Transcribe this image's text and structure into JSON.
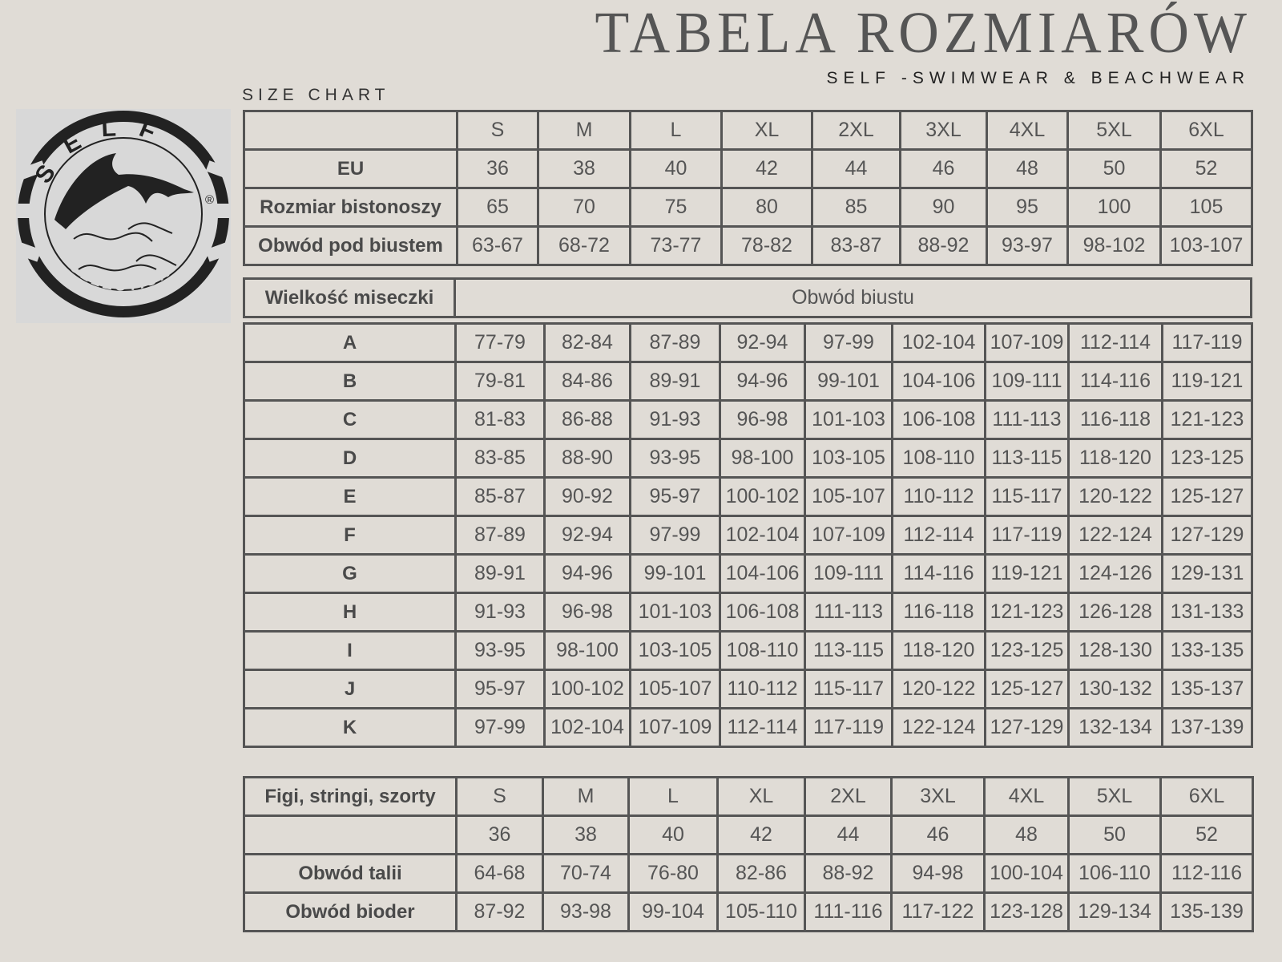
{
  "header": {
    "title": "TABELA ROZMIARÓW",
    "subtitle": "SELF -SWIMWEAR & BEACHWEAR",
    "size_chart_label": "SIZE CHART"
  },
  "logo": {
    "top_text": "SELF",
    "bottom_text": "COLLECTION",
    "mark": "®"
  },
  "colors": {
    "background": "#e0dcd6",
    "border": "#555555",
    "text": "#555555"
  },
  "top_table": {
    "rows": [
      [
        "",
        "S",
        "M",
        "L",
        "XL",
        "2XL",
        "3XL",
        "4XL",
        "5XL",
        "6XL"
      ],
      [
        "EU",
        "36",
        "38",
        "40",
        "42",
        "44",
        "46",
        "48",
        "50",
        "52"
      ],
      [
        "Rozmiar bistonoszy",
        "65",
        "70",
        "75",
        "80",
        "85",
        "90",
        "95",
        "100",
        "105"
      ],
      [
        "Obwód pod biustem",
        "63-67",
        "68-72",
        "73-77",
        "78-82",
        "83-87",
        "88-92",
        "93-97",
        "98-102",
        "103-107"
      ]
    ]
  },
  "cup_header": {
    "label": "Wielkość miseczki",
    "value": "Obwód biustu"
  },
  "cup_table": {
    "rows": [
      [
        "A",
        "77-79",
        "82-84",
        "87-89",
        "92-94",
        "97-99",
        "102-104",
        "107-109",
        "112-114",
        "117-119"
      ],
      [
        "B",
        "79-81",
        "84-86",
        "89-91",
        "94-96",
        "99-101",
        "104-106",
        "109-111",
        "114-116",
        "119-121"
      ],
      [
        "C",
        "81-83",
        "86-88",
        "91-93",
        "96-98",
        "101-103",
        "106-108",
        "111-113",
        "116-118",
        "121-123"
      ],
      [
        "D",
        "83-85",
        "88-90",
        "93-95",
        "98-100",
        "103-105",
        "108-110",
        "113-115",
        "118-120",
        "123-125"
      ],
      [
        "E",
        "85-87",
        "90-92",
        "95-97",
        "100-102",
        "105-107",
        "110-112",
        "115-117",
        "120-122",
        "125-127"
      ],
      [
        "F",
        "87-89",
        "92-94",
        "97-99",
        "102-104",
        "107-109",
        "112-114",
        "117-119",
        "122-124",
        "127-129"
      ],
      [
        "G",
        "89-91",
        "94-96",
        "99-101",
        "104-106",
        "109-111",
        "114-116",
        "119-121",
        "124-126",
        "129-131"
      ],
      [
        "H",
        "91-93",
        "96-98",
        "101-103",
        "106-108",
        "111-113",
        "116-118",
        "121-123",
        "126-128",
        "131-133"
      ],
      [
        "I",
        "93-95",
        "98-100",
        "103-105",
        "108-110",
        "113-115",
        "118-120",
        "123-125",
        "128-130",
        "133-135"
      ],
      [
        "J",
        "95-97",
        "100-102",
        "105-107",
        "110-112",
        "115-117",
        "120-122",
        "125-127",
        "130-132",
        "135-137"
      ],
      [
        "K",
        "97-99",
        "102-104",
        "107-109",
        "112-114",
        "117-119",
        "122-124",
        "127-129",
        "132-134",
        "137-139"
      ]
    ]
  },
  "bottom_table": {
    "rows": [
      [
        "Figi, stringi, szorty",
        "S",
        "M",
        "L",
        "XL",
        "2XL",
        "3XL",
        "4XL",
        "5XL",
        "6XL"
      ],
      [
        "",
        "36",
        "38",
        "40",
        "42",
        "44",
        "46",
        "48",
        "50",
        "52"
      ],
      [
        "Obwód talii",
        "64-68",
        "70-74",
        "76-80",
        "82-86",
        "88-92",
        "94-98",
        "100-104",
        "106-110",
        "112-116"
      ],
      [
        "Obwód bioder",
        "87-92",
        "93-98",
        "99-104",
        "105-110",
        "111-116",
        "117-122",
        "123-128",
        "129-134",
        "135-139"
      ]
    ]
  }
}
